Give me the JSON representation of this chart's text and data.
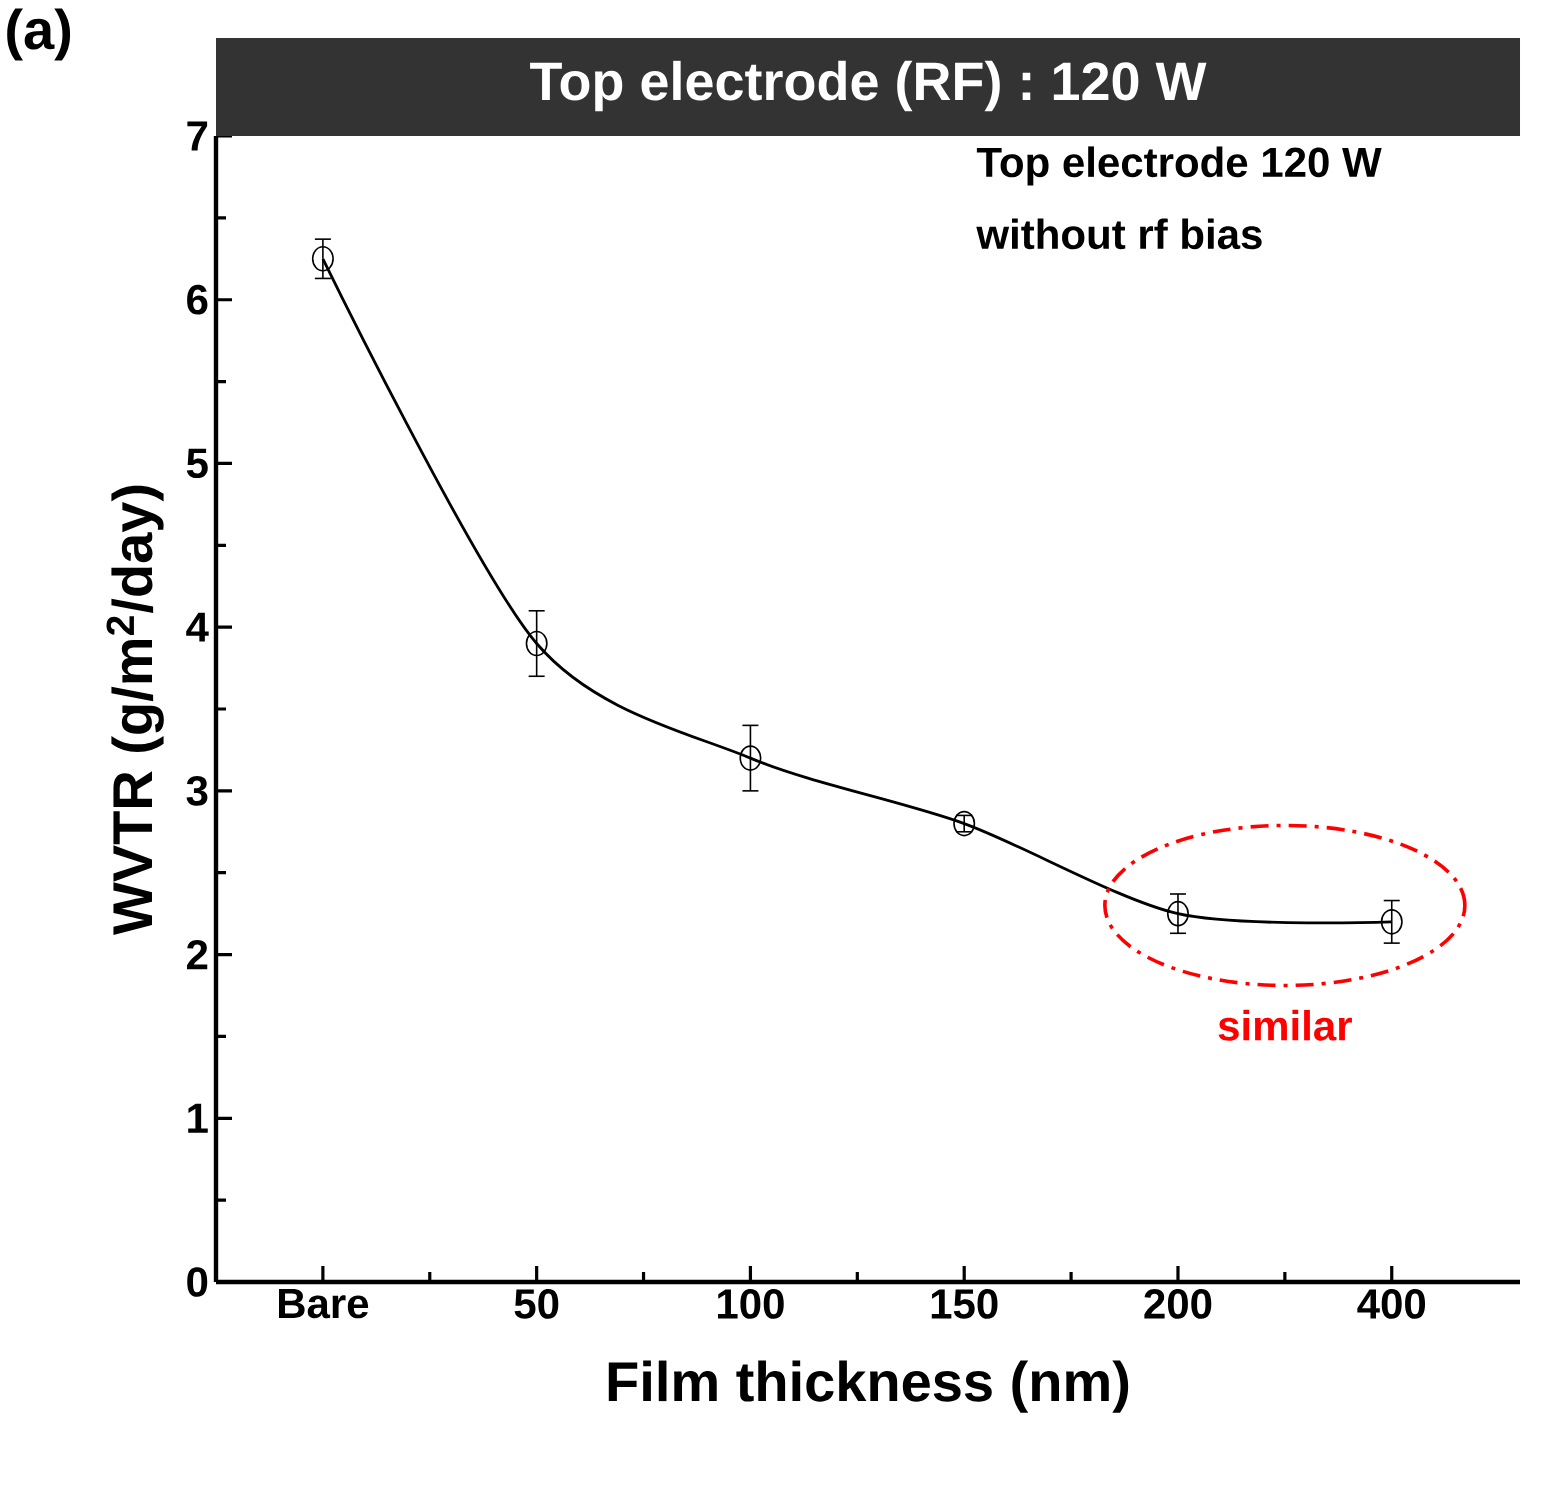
{
  "chart_data": {
    "type": "line",
    "title": "Top electrode (RF) : 120 W",
    "xlabel": "Film thickness (nm)",
    "ylabel": "WVTR  (g/m$^{2}$/day)",
    "categories": [
      "Bare",
      "50",
      "100",
      "150",
      "200",
      "400"
    ],
    "series": [
      {
        "color": "#000000",
        "values": [
          6.25,
          3.9,
          3.2,
          2.8,
          2.25,
          2.2
        ],
        "errors": [
          0.12,
          0.2,
          0.2,
          0.05,
          0.12,
          0.13
        ]
      }
    ],
    "ylim": [
      0,
      7
    ],
    "yticks": [
      0,
      1,
      2,
      3,
      4,
      5,
      6,
      7
    ],
    "marker": "circle",
    "line_style": "solid",
    "annotations": [
      "(a)",
      "Top electrode 120 W",
      "without rf bias",
      "similar"
    ]
  }
}
